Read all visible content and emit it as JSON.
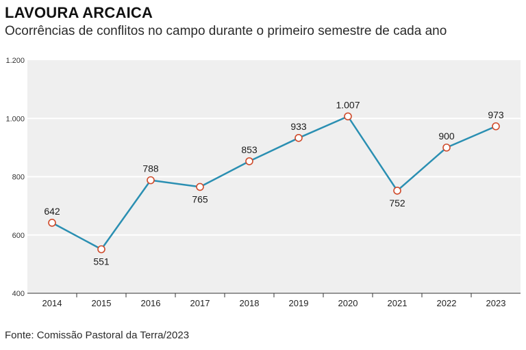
{
  "chart_data": {
    "type": "line",
    "title": "LAVOURA ARCAICA",
    "subtitle": "Ocorrências de conflitos no campo durante o primeiro semestre de cada ano",
    "source": "Fonte: Comissão Pastoral da Terra/2023",
    "categories": [
      "2014",
      "2015",
      "2016",
      "2017",
      "2018",
      "2019",
      "2020",
      "2021",
      "2022",
      "2023"
    ],
    "values": [
      642,
      551,
      788,
      765,
      853,
      933,
      1007,
      752,
      900,
      973
    ],
    "data_labels": [
      "642",
      "551",
      "788",
      "765",
      "853",
      "933",
      "1.007",
      "752",
      "900",
      "973"
    ],
    "label_position": [
      "above",
      "below",
      "above",
      "below",
      "above",
      "above",
      "above",
      "below",
      "above",
      "above"
    ],
    "ylim": [
      400,
      1200
    ],
    "yticks": [
      400,
      600,
      800,
      1000,
      1200
    ],
    "ytick_labels": [
      "400",
      "600",
      "800",
      "1.000",
      "1.200"
    ],
    "grid": true,
    "line_color": "#2a8fb2",
    "marker_edge_color": "#cf4a2a",
    "marker_fill_color": "#ffffff",
    "background_color": "#efefef",
    "grid_color": "#ffffff"
  }
}
